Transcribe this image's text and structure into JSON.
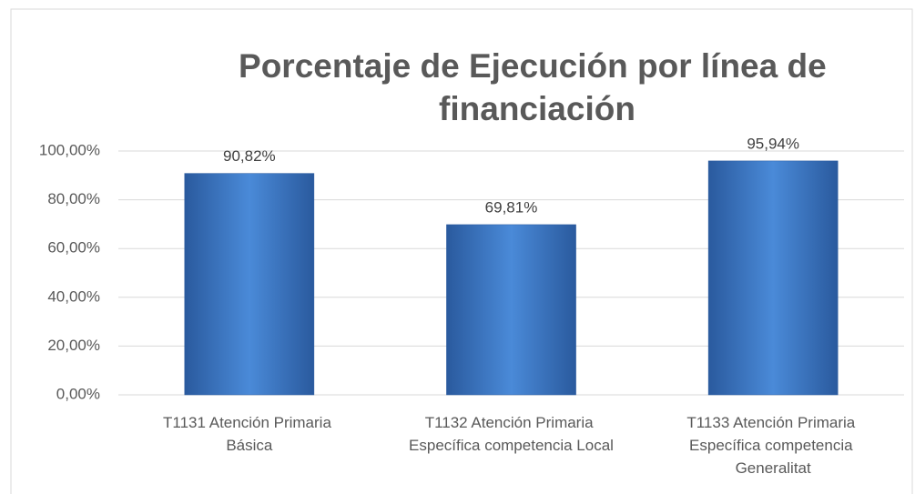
{
  "chart_data": {
    "type": "bar",
    "title": "Porcentaje de Ejecución por línea de financiación",
    "categories": [
      "T1131 Atención Primaria Básica",
      "T1132 Atención Primaria Específica competencia Local",
      "T1133 Atención Primaria Específica competencia Generalitat"
    ],
    "values": [
      90.82,
      69.81,
      95.94
    ],
    "value_labels": [
      "90,82%",
      "69,81%",
      "95,94%"
    ],
    "color": "#3f7bc9",
    "ylim": [
      0,
      100
    ],
    "yticks": [
      {
        "value": 0,
        "label": "0,00%"
      },
      {
        "value": 20,
        "label": "20,00%"
      },
      {
        "value": 40,
        "label": "40,00%"
      },
      {
        "value": 60,
        "label": "60,00%"
      },
      {
        "value": 80,
        "label": "80,00%"
      },
      {
        "value": 100,
        "label": "100,00%"
      }
    ],
    "grid": true
  }
}
